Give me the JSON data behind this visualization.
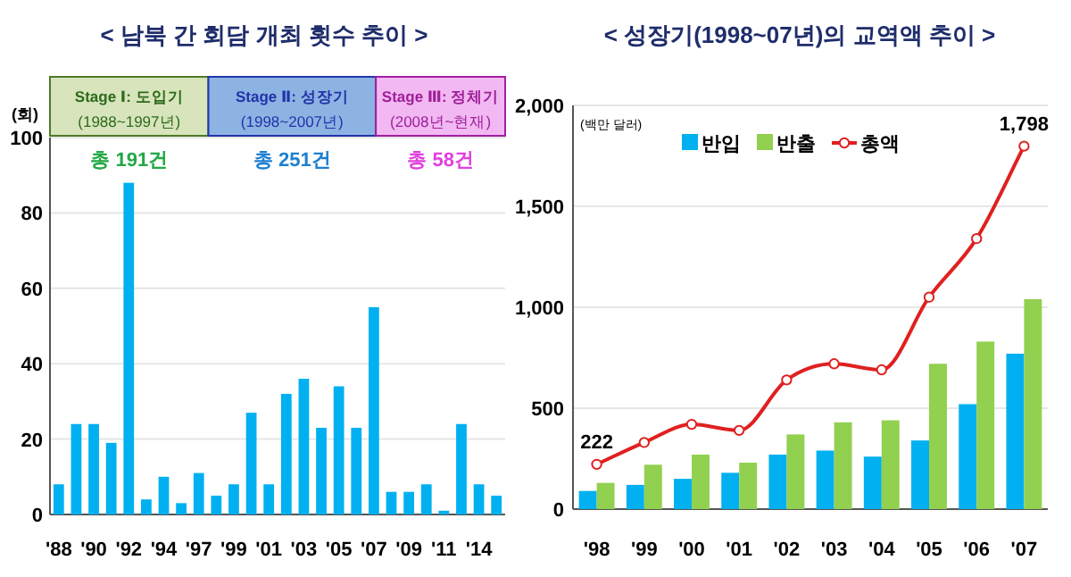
{
  "chart_data": [
    {
      "type": "bar",
      "title": "< 남북 간 회담 개최 횟수 추이 >",
      "ylabel": "(회)",
      "categories": [
        "'88",
        null,
        "'90",
        null,
        "'92",
        null,
        "'94",
        null,
        "'97",
        null,
        "'99",
        null,
        "'01",
        null,
        "'03",
        null,
        "'05",
        null,
        "'07",
        null,
        "'09",
        null,
        "'11",
        null,
        "'14",
        null
      ],
      "values": [
        8,
        24,
        24,
        19,
        88,
        4,
        10,
        3,
        11,
        5,
        8,
        27,
        8,
        32,
        36,
        23,
        34,
        23,
        55,
        6,
        6,
        8,
        1,
        24,
        8,
        5
      ],
      "color": "#00b0f0",
      "ylim": [
        0,
        100
      ],
      "yticks": [
        0,
        20,
        40,
        60,
        80,
        100
      ],
      "grid": "y",
      "annotations": [
        "Stage Ⅰ: 도입기",
        "(1988~1997년)",
        "총 191건",
        "Stage Ⅱ: 성장기",
        "(1998~2007년)",
        "총 251건",
        "Stage Ⅲ: 정체기",
        "(2008년~현재)",
        "총 58건"
      ]
    },
    {
      "type": "bar",
      "title": "< 성장기(1998~07년)의 교역액 추이 >",
      "ylabel": "(백만 달러)",
      "categories": [
        "'98",
        "'99",
        "'00",
        "'01",
        "'02",
        "'03",
        "'04",
        "'05",
        "'06",
        "'07"
      ],
      "series": [
        {
          "name": "반입",
          "color": "#00b0f0",
          "values": [
            90,
            120,
            150,
            180,
            270,
            290,
            260,
            340,
            520,
            770
          ]
        },
        {
          "name": "반출",
          "color": "#92d050",
          "values": [
            130,
            220,
            270,
            230,
            370,
            430,
            440,
            720,
            830,
            1040
          ]
        },
        {
          "name": "총액",
          "type": "line",
          "color": "#e02020",
          "marker": "circle",
          "values": [
            222,
            330,
            420,
            390,
            640,
            720,
            690,
            1050,
            1340,
            1798
          ],
          "value_labels": [
            "222",
            null,
            null,
            null,
            null,
            null,
            null,
            null,
            null,
            "1,798"
          ]
        }
      ],
      "ylim": [
        0,
        2000
      ],
      "yticks": [
        0,
        500,
        {
          "value": 1000,
          "label": "1,000"
        },
        {
          "value": 1500,
          "label": "1,500"
        },
        {
          "value": 2000,
          "label": "2,000"
        }
      ],
      "grid": "y",
      "legend": "top"
    }
  ]
}
